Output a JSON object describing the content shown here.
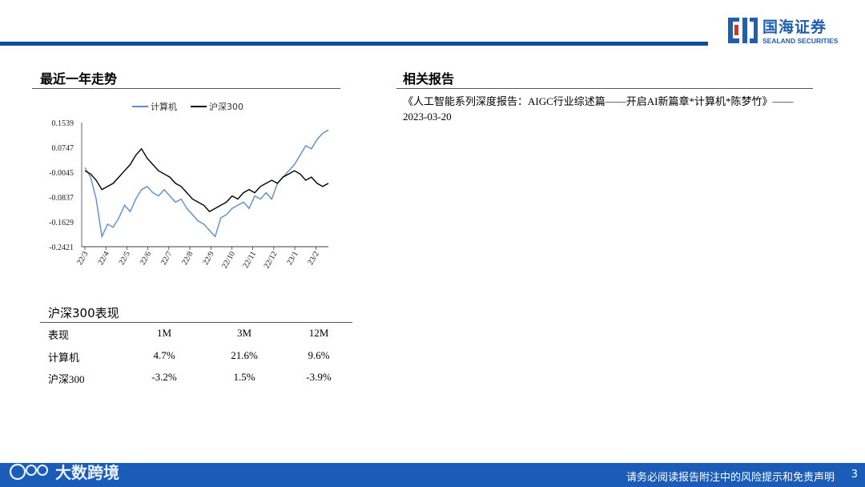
{
  "brand": {
    "name_cn": "国海证券",
    "name_en": "SEALAND SECURITIES",
    "brand_color": "#1f5fae"
  },
  "left_section_title": "最近一年走势",
  "right_section_title": "相关报告",
  "chart_data": {
    "type": "line",
    "title": "",
    "xlabel": "",
    "ylabel": "",
    "ylim": [
      -0.2421,
      0.1539
    ],
    "y_ticks": [
      "0.1539",
      "0.0747",
      "-0.0045",
      "-0.0837",
      "-0.1629",
      "-0.2421"
    ],
    "x_ticks": [
      "22/3",
      "22/4",
      "22/5",
      "22/6",
      "22/7",
      "22/8",
      "22/9",
      "22/10",
      "22/11",
      "22/12",
      "23/1",
      "23/2"
    ],
    "legend_position": "top-center",
    "series": [
      {
        "name": "计算机",
        "color": "#5b8ec9",
        "values": [
          0.01,
          -0.02,
          -0.09,
          -0.21,
          -0.17,
          -0.18,
          -0.15,
          -0.11,
          -0.13,
          -0.09,
          -0.06,
          -0.05,
          -0.07,
          -0.08,
          -0.06,
          -0.08,
          -0.1,
          -0.09,
          -0.12,
          -0.14,
          -0.16,
          -0.17,
          -0.19,
          -0.21,
          -0.15,
          -0.14,
          -0.12,
          -0.11,
          -0.1,
          -0.12,
          -0.08,
          -0.09,
          -0.07,
          -0.09,
          -0.04,
          -0.02,
          0.0,
          0.02,
          0.05,
          0.08,
          0.07,
          0.1,
          0.12,
          0.13
        ]
      },
      {
        "name": "沪深300",
        "color": "#000000",
        "values": [
          0.0,
          -0.01,
          -0.03,
          -0.06,
          -0.05,
          -0.04,
          -0.02,
          0.0,
          0.02,
          0.05,
          0.07,
          0.04,
          0.02,
          0.0,
          -0.01,
          -0.02,
          -0.04,
          -0.05,
          -0.07,
          -0.09,
          -0.1,
          -0.11,
          -0.13,
          -0.12,
          -0.11,
          -0.1,
          -0.08,
          -0.09,
          -0.07,
          -0.06,
          -0.07,
          -0.05,
          -0.04,
          -0.03,
          -0.04,
          -0.02,
          -0.01,
          0.0,
          -0.01,
          -0.03,
          -0.02,
          -0.04,
          -0.05,
          -0.04
        ]
      }
    ]
  },
  "perf_table": {
    "title": "沪深300表现",
    "headers": [
      "表现",
      "1M",
      "3M",
      "12M"
    ],
    "rows": [
      [
        "计算机",
        "4.7%",
        "21.6%",
        "9.6%"
      ],
      [
        "沪深300",
        "-3.2%",
        "1.5%",
        "-3.9%"
      ]
    ]
  },
  "report_text": "《人工智能系列深度报告：AIGC行业综述篇——开启AI新篇章*计算机*陈梦竹》——2023-03-20",
  "footer": {
    "disclaimer": "请务必阅读报告附注中的风险提示和免责声明",
    "page": "3",
    "watermark": "大数跨境"
  }
}
